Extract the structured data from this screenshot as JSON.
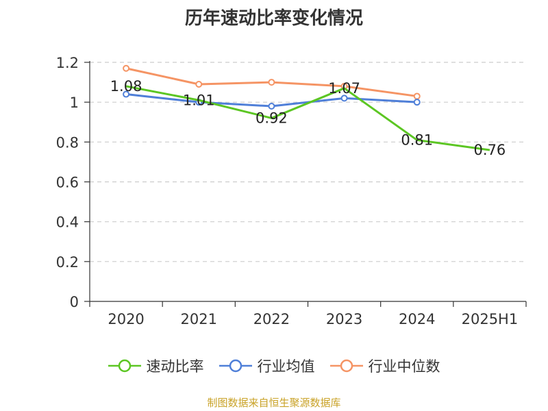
{
  "chart_data": {
    "type": "line",
    "title": "历年速动比率变化情况",
    "categories": [
      "2020",
      "2021",
      "2022",
      "2023",
      "2024",
      "2025H1"
    ],
    "ylim": [
      0,
      1.2
    ],
    "yticks": [
      "0",
      "0.2",
      "0.4",
      "0.6",
      "0.8",
      "1",
      "1.2"
    ],
    "grid": true,
    "legend_position": "bottom",
    "series": [
      {
        "name": "速动比率",
        "color": "#5cc623",
        "values": [
          1.08,
          1.01,
          0.92,
          1.07,
          0.81,
          0.76
        ],
        "labels": [
          "1.08",
          "1.01",
          "0.92",
          "1.07",
          "0.81",
          "0.76"
        ]
      },
      {
        "name": "行业均值",
        "color": "#4f7fd8",
        "values": [
          1.04,
          1.0,
          0.98,
          1.02,
          1.0,
          null
        ]
      },
      {
        "name": "行业中位数",
        "color": "#f59464",
        "values": [
          1.17,
          1.09,
          1.1,
          1.08,
          1.03,
          null
        ]
      }
    ]
  },
  "footer": {
    "source": "制图数据来自恒生聚源数据库"
  }
}
